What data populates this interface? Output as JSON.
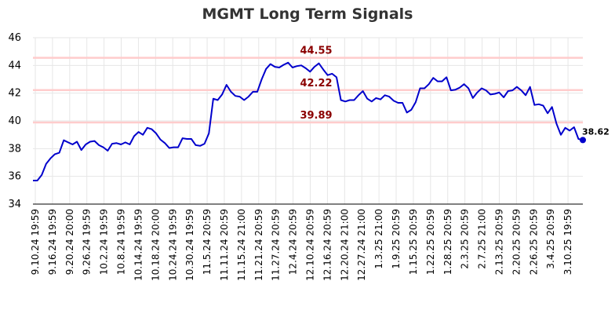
{
  "chart_data": {
    "type": "line",
    "title": "MGMT Long Term Signals",
    "xlabel": "",
    "ylabel": "",
    "ylim": [
      34,
      46
    ],
    "yticks": [
      34,
      36,
      38,
      40,
      42,
      44,
      46
    ],
    "grid": true,
    "x_tick_labels": [
      "9.10.24 19:59",
      "9.16.24 19:59",
      "9.20.24 20:00",
      "9.26.24 19:59",
      "10.2.24 19:59",
      "10.8.24 19:59",
      "10.14.24 19:59",
      "10.18.24 20:00",
      "10.24.24 19:59",
      "10.30.24 19:59",
      "11.5.24 20:59",
      "11.11.24 20:59",
      "11.15.24 21:00",
      "11.21.24 20:59",
      "11.27.24 20:59",
      "12.4.24 20:59",
      "12.10.24 20:59",
      "12.16.24 20:59",
      "12.20.24 21:00",
      "12.27.24 21:00",
      "1.3.25 21:00",
      "1.9.25 20:59",
      "1.15.25 20:59",
      "1.22.25 20:59",
      "1.28.25 20:59",
      "2.3.25 20:59",
      "2.7.25 21:00",
      "2.13.25 20:59",
      "2.20.25 20:59",
      "2.26.25 20:59",
      "3.4.25 20:59",
      "3.10.25 19:59"
    ],
    "series": [
      {
        "color": "#0000cc",
        "values": [
          35.7,
          35.7,
          36.1,
          36.9,
          37.3,
          37.6,
          37.7,
          38.6,
          38.45,
          38.3,
          38.5,
          37.9,
          38.3,
          38.5,
          38.55,
          38.25,
          38.1,
          37.85,
          38.35,
          38.4,
          38.3,
          38.45,
          38.3,
          38.9,
          39.2,
          39.0,
          39.5,
          39.4,
          39.1,
          38.65,
          38.4,
          38.05,
          38.1,
          38.1,
          38.75,
          38.7,
          38.7,
          38.25,
          38.2,
          38.35,
          39.1,
          41.6,
          41.5,
          41.9,
          42.6,
          42.1,
          41.8,
          41.75,
          41.5,
          41.75,
          42.1,
          42.1,
          43.0,
          43.75,
          44.1,
          43.9,
          43.85,
          44.05,
          44.2,
          43.85,
          43.95,
          44.0,
          43.8,
          43.55,
          43.9,
          44.15,
          43.7,
          43.3,
          43.4,
          43.15,
          41.5,
          41.4,
          41.5,
          41.5,
          41.85,
          42.15,
          41.6,
          41.4,
          41.65,
          41.55,
          41.85,
          41.75,
          41.45,
          41.3,
          41.3,
          40.6,
          40.8,
          41.35,
          42.35,
          42.35,
          42.65,
          43.1,
          42.85,
          42.85,
          43.15,
          42.2,
          42.25,
          42.4,
          42.65,
          42.35,
          41.65,
          42.05,
          42.35,
          42.2,
          41.9,
          41.95,
          42.05,
          41.7,
          42.15,
          42.2,
          42.45,
          42.2,
          41.85,
          42.45,
          41.15,
          41.2,
          41.1,
          40.55,
          41.0,
          39.8,
          39.0,
          39.5,
          39.3,
          39.55,
          38.7,
          38.62
        ]
      }
    ],
    "reference_lines": [
      {
        "value": 44.55,
        "label": "44.55"
      },
      {
        "value": 42.22,
        "label": "42.22"
      },
      {
        "value": 39.89,
        "label": "39.89"
      }
    ],
    "last_point": {
      "value": 38.62,
      "label": "38.62"
    },
    "colors": {
      "line": "#0000cc",
      "reference_line": "#ffcccc",
      "reference_label": "#8b0000",
      "grid": "#e6e6e6",
      "axis": "#000000",
      "title": "#333333"
    }
  }
}
